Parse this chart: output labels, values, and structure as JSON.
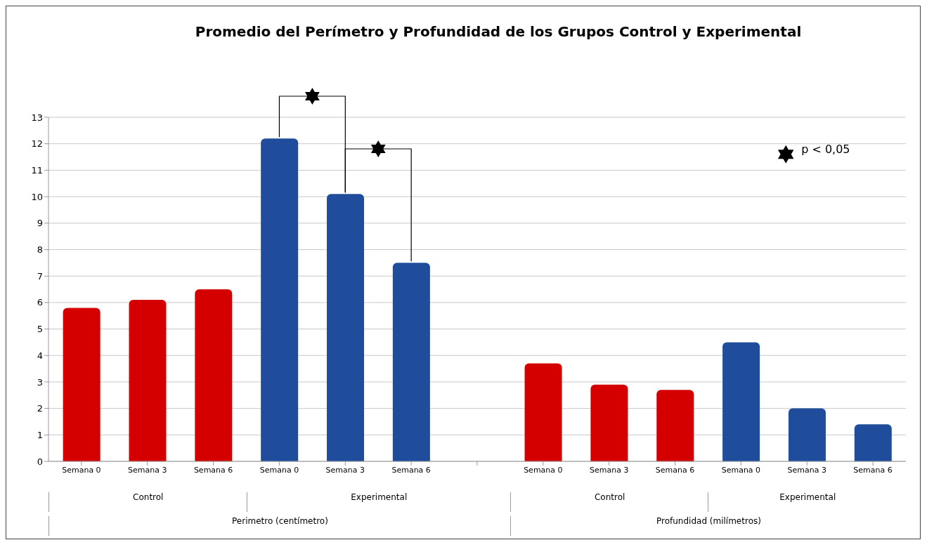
{
  "chart_data": {
    "type": "bar",
    "title": "Promedio del Perímetro y Profundidad de los Grupos Control y Experimental",
    "categories": [
      "Semana 0",
      "Semana 3",
      "Semana 6",
      "Semana 0",
      "Semana 3",
      "Semana 6",
      null,
      "Semana 0",
      "Semana 3",
      "Semana 6",
      "Semana 0",
      "Semana 3",
      "Semana 6"
    ],
    "values": [
      5.8,
      6.1,
      6.5,
      12.2,
      10.1,
      7.5,
      null,
      3.7,
      2.9,
      2.7,
      4.5,
      2.0,
      1.4
    ],
    "colors": [
      "#d40000",
      "#d40000",
      "#d40000",
      "#1f4d9c",
      "#1f4d9c",
      "#1f4d9c",
      "#1f4d9c",
      "#d40000",
      "#d40000",
      "#d40000",
      "#1f4d9c",
      "#1f4d9c",
      "#1f4d9c"
    ],
    "ylim": [
      0,
      13
    ],
    "yticks": [
      0,
      1,
      2,
      3,
      4,
      5,
      6,
      7,
      8,
      9,
      10,
      11,
      12,
      13
    ],
    "grid": "y",
    "annotations": [
      "p < 0,05",
      "Control",
      "Experimental",
      "Perimetro (centímetro)",
      "Control",
      "Experimental",
      "Profundidad (milímetros)"
    ]
  }
}
